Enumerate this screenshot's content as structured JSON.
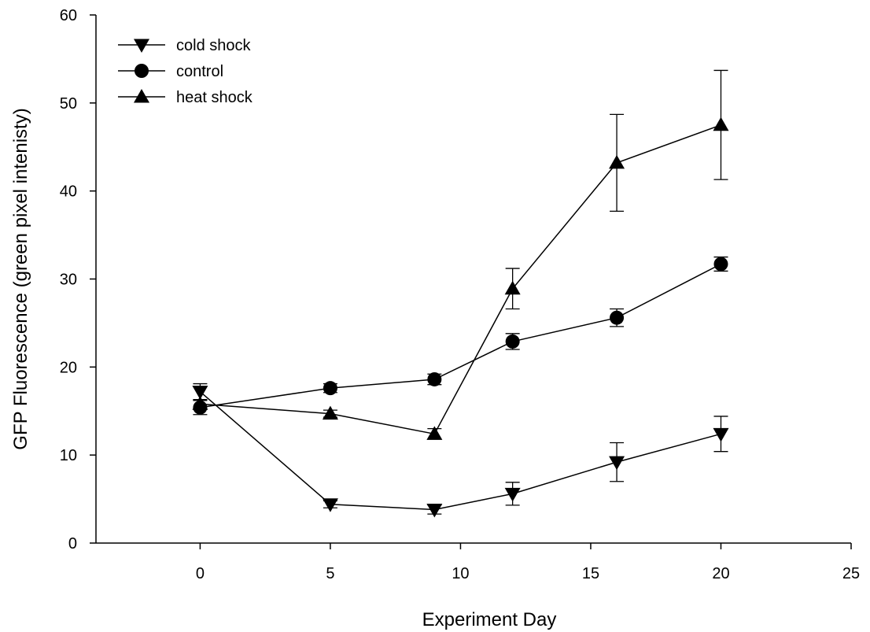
{
  "chart_data": {
    "type": "line",
    "title": "",
    "xlabel": "Experiment Day",
    "ylabel": "GFP Fluorescence (green pixel intenisty)",
    "xlim": [
      -4,
      25
    ],
    "ylim": [
      0,
      60
    ],
    "xticks": [
      0,
      5,
      10,
      15,
      20,
      25
    ],
    "yticks": [
      0,
      10,
      20,
      30,
      40,
      50,
      60
    ],
    "grid": false,
    "legend_position": "top-left",
    "series": [
      {
        "name": "cold shock",
        "marker": "triangle-down",
        "color": "#000000",
        "x": [
          0,
          5,
          9,
          12,
          16,
          20
        ],
        "y": [
          17.2,
          4.4,
          3.8,
          5.6,
          9.2,
          12.4
        ],
        "err": [
          0.9,
          0.4,
          0.5,
          1.3,
          2.2,
          2.0
        ]
      },
      {
        "name": "control",
        "marker": "circle",
        "color": "#000000",
        "x": [
          0,
          5,
          9,
          12,
          16,
          20
        ],
        "y": [
          15.4,
          17.6,
          18.6,
          22.9,
          25.6,
          31.7
        ],
        "err": [
          0.8,
          0.5,
          0.6,
          0.9,
          1.0,
          0.8
        ]
      },
      {
        "name": "heat shock",
        "marker": "triangle-up",
        "color": "#000000",
        "x": [
          0,
          5,
          9,
          12,
          16,
          20
        ],
        "y": [
          15.8,
          14.7,
          12.4,
          28.9,
          43.2,
          47.5
        ],
        "err": [
          0.5,
          0.4,
          0.6,
          2.3,
          5.5,
          6.2
        ]
      }
    ]
  }
}
